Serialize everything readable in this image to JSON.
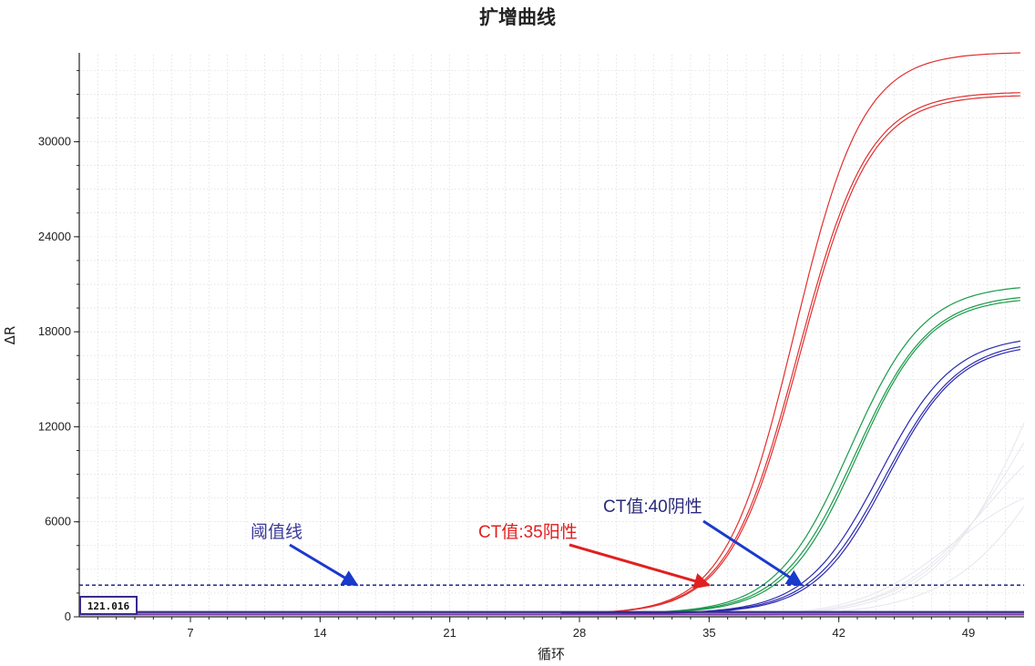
{
  "chart_data": {
    "type": "line",
    "title": "扩增曲线",
    "xlabel": "循环",
    "ylabel": "ΔR",
    "xlim": [
      1,
      52
    ],
    "ylim": [
      0,
      35500
    ],
    "xticks": [
      7,
      14,
      21,
      28,
      35,
      42,
      49
    ],
    "yticks": [
      0,
      6000,
      12000,
      18000,
      24000,
      30000
    ],
    "grid": true,
    "threshold": {
      "value": 2000,
      "color": "#1f2a8a",
      "label": "阈值线"
    },
    "series": [
      {
        "color": "#e03030",
        "ct": 35,
        "plateau": 35500,
        "midpoint": 39.6,
        "slope": 1.85
      },
      {
        "color": "#e03030",
        "ct": 35,
        "plateau": 33000,
        "midpoint": 39.8,
        "slope": 1.9
      },
      {
        "color": "#e03030",
        "ct": 35,
        "plateau": 32800,
        "midpoint": 39.9,
        "slope": 1.9
      },
      {
        "color": "#1a9a4a",
        "ct": 38,
        "plateau": 20800,
        "midpoint": 42.6,
        "slope": 2.0
      },
      {
        "color": "#1a9a4a",
        "ct": 38,
        "plateau": 20200,
        "midpoint": 42.9,
        "slope": 2.0
      },
      {
        "color": "#1a9a4a",
        "ct": 38,
        "plateau": 20000,
        "midpoint": 43.0,
        "slope": 1.95
      },
      {
        "color": "#2a2ab0",
        "ct": 40,
        "plateau": 17600,
        "midpoint": 44.2,
        "slope": 2.0
      },
      {
        "color": "#2a2ab0",
        "ct": 40,
        "plateau": 17300,
        "midpoint": 44.5,
        "slope": 2.0
      },
      {
        "color": "#2a2ab0",
        "ct": 40,
        "plateau": 17100,
        "midpoint": 44.6,
        "slope": 1.95
      }
    ],
    "baselines": [
      {
        "color": "#3a2a8a",
        "value": 300
      },
      {
        "color": "#7a3aaa",
        "value": 150
      }
    ],
    "annotations": [
      {
        "text": "阈值线",
        "color": "#3a3a9a",
        "arrow_color": "#1a3acc",
        "x": 16,
        "y": 2000
      },
      {
        "text": "CT值:35阳性",
        "color": "#e02020",
        "arrow_color": "#e02020",
        "x": 35,
        "y": 2000
      },
      {
        "text": "CT值:40阴性",
        "color": "#2a2a7a",
        "arrow_color": "#1a3acc",
        "x": 40,
        "y": 2000
      }
    ],
    "corner_box_text": "121.016"
  }
}
